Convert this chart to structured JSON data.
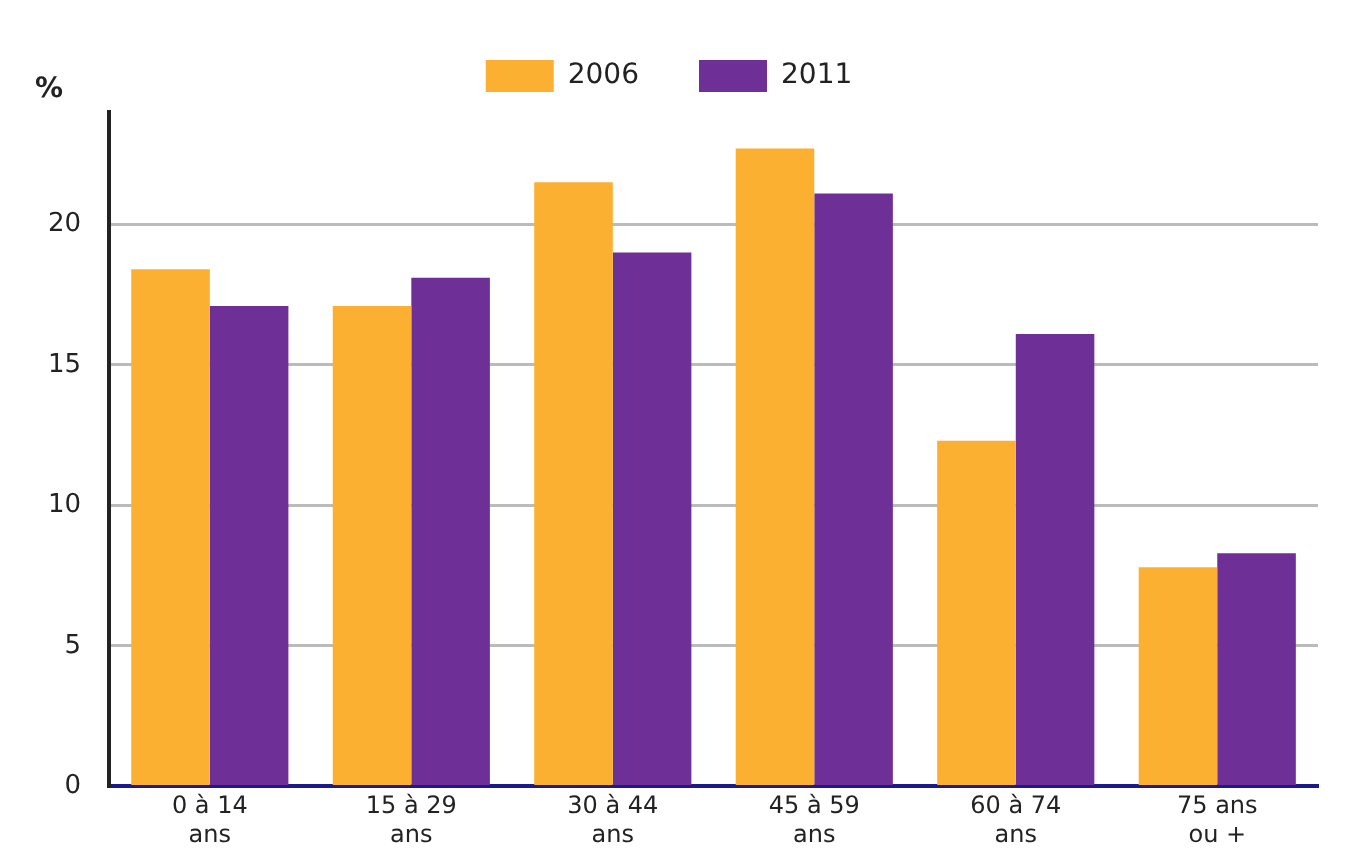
{
  "chart_data": {
    "type": "bar",
    "ylabel": "%",
    "categories": [
      "0 à 14 ans",
      "15 à 29 ans",
      "30 à 44 ans",
      "45 à 59 ans",
      "60 à 74 ans",
      "75 ans ou +"
    ],
    "series": [
      {
        "name": "2006",
        "color": "#fbb032",
        "values": [
          18.4,
          17.1,
          21.5,
          22.7,
          12.3,
          7.8
        ]
      },
      {
        "name": "2011",
        "color": "#6e3096",
        "values": [
          17.1,
          18.1,
          19.0,
          21.1,
          16.1,
          8.3
        ]
      }
    ],
    "ylim": [
      0,
      24
    ],
    "yticks": [
      0,
      5,
      10,
      15,
      20
    ],
    "grid": "y",
    "legend": "top"
  }
}
